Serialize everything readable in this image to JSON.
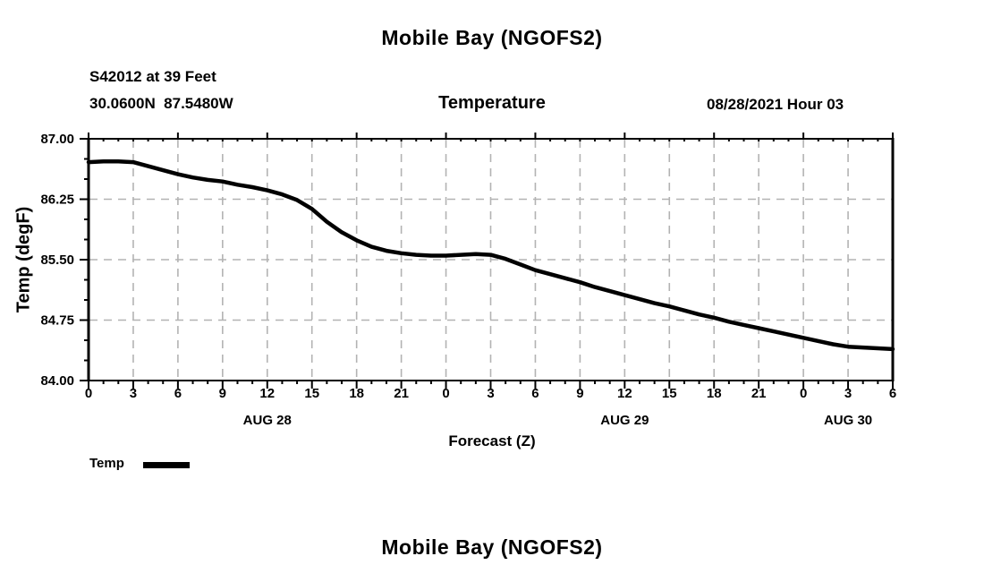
{
  "header": {
    "title": "Mobile Bay (NGOFS2)",
    "station": "S42012 at 39 Feet",
    "coordinates": "30.0600N  87.5480W",
    "subtitle": "Temperature",
    "datetime": "08/28/2021 Hour 03"
  },
  "legend": {
    "label": "Temp",
    "swatch_color": "#000000"
  },
  "footer": {
    "next_chart_title": "Mobile Bay (NGOFS2)"
  },
  "chart_data": {
    "type": "line",
    "title": "Temperature",
    "xlabel": "Forecast (Z)",
    "ylabel": "Temp (degF)",
    "ylim": [
      84.0,
      87.0
    ],
    "xlim_hours": [
      0,
      54
    ],
    "grid": true,
    "grid_color": "#b3b3b3",
    "axis_color": "#000000",
    "line_color": "#000000",
    "y_ticks": [
      87.0,
      86.25,
      85.5,
      84.75,
      84.0
    ],
    "y_tick_labels": [
      "87.00",
      "86.25",
      "85.50",
      "84.75",
      "84.00"
    ],
    "y_minor_step": 0.25,
    "x_major_step_hours": 3,
    "x_minor_step_hours": 1,
    "x_tick_labels": [
      "0",
      "3",
      "6",
      "9",
      "12",
      "15",
      "18",
      "21",
      "0",
      "3",
      "6",
      "9",
      "12",
      "15",
      "18",
      "21",
      "0",
      "3",
      "6"
    ],
    "day_labels": [
      {
        "label": "AUG 28",
        "hour": 12
      },
      {
        "label": "AUG 29",
        "hour": 36
      },
      {
        "label": "AUG 30",
        "hour": 51
      }
    ],
    "series": [
      {
        "name": "Temp",
        "x_hours": [
          0,
          1,
          2,
          3,
          4,
          5,
          6,
          7,
          8,
          9,
          10,
          11,
          12,
          13,
          14,
          15,
          16,
          17,
          18,
          19,
          20,
          21,
          22,
          23,
          24,
          25,
          26,
          27,
          28,
          29,
          30,
          31,
          32,
          33,
          34,
          35,
          36,
          37,
          38,
          39,
          40,
          41,
          42,
          43,
          44,
          45,
          46,
          47,
          48,
          49,
          50,
          51,
          52,
          53,
          54
        ],
        "values": [
          86.71,
          86.72,
          86.72,
          86.71,
          86.66,
          86.61,
          86.56,
          86.52,
          86.49,
          86.47,
          86.43,
          86.4,
          86.36,
          86.31,
          86.24,
          86.13,
          85.97,
          85.84,
          85.74,
          85.66,
          85.61,
          85.58,
          85.56,
          85.55,
          85.55,
          85.56,
          85.57,
          85.56,
          85.51,
          85.44,
          85.37,
          85.32,
          85.27,
          85.22,
          85.16,
          85.11,
          85.06,
          85.01,
          84.96,
          84.92,
          84.87,
          84.82,
          84.78,
          84.73,
          84.69,
          84.65,
          84.61,
          84.57,
          84.53,
          84.49,
          84.45,
          84.42,
          84.41,
          84.4,
          84.39
        ]
      }
    ]
  }
}
